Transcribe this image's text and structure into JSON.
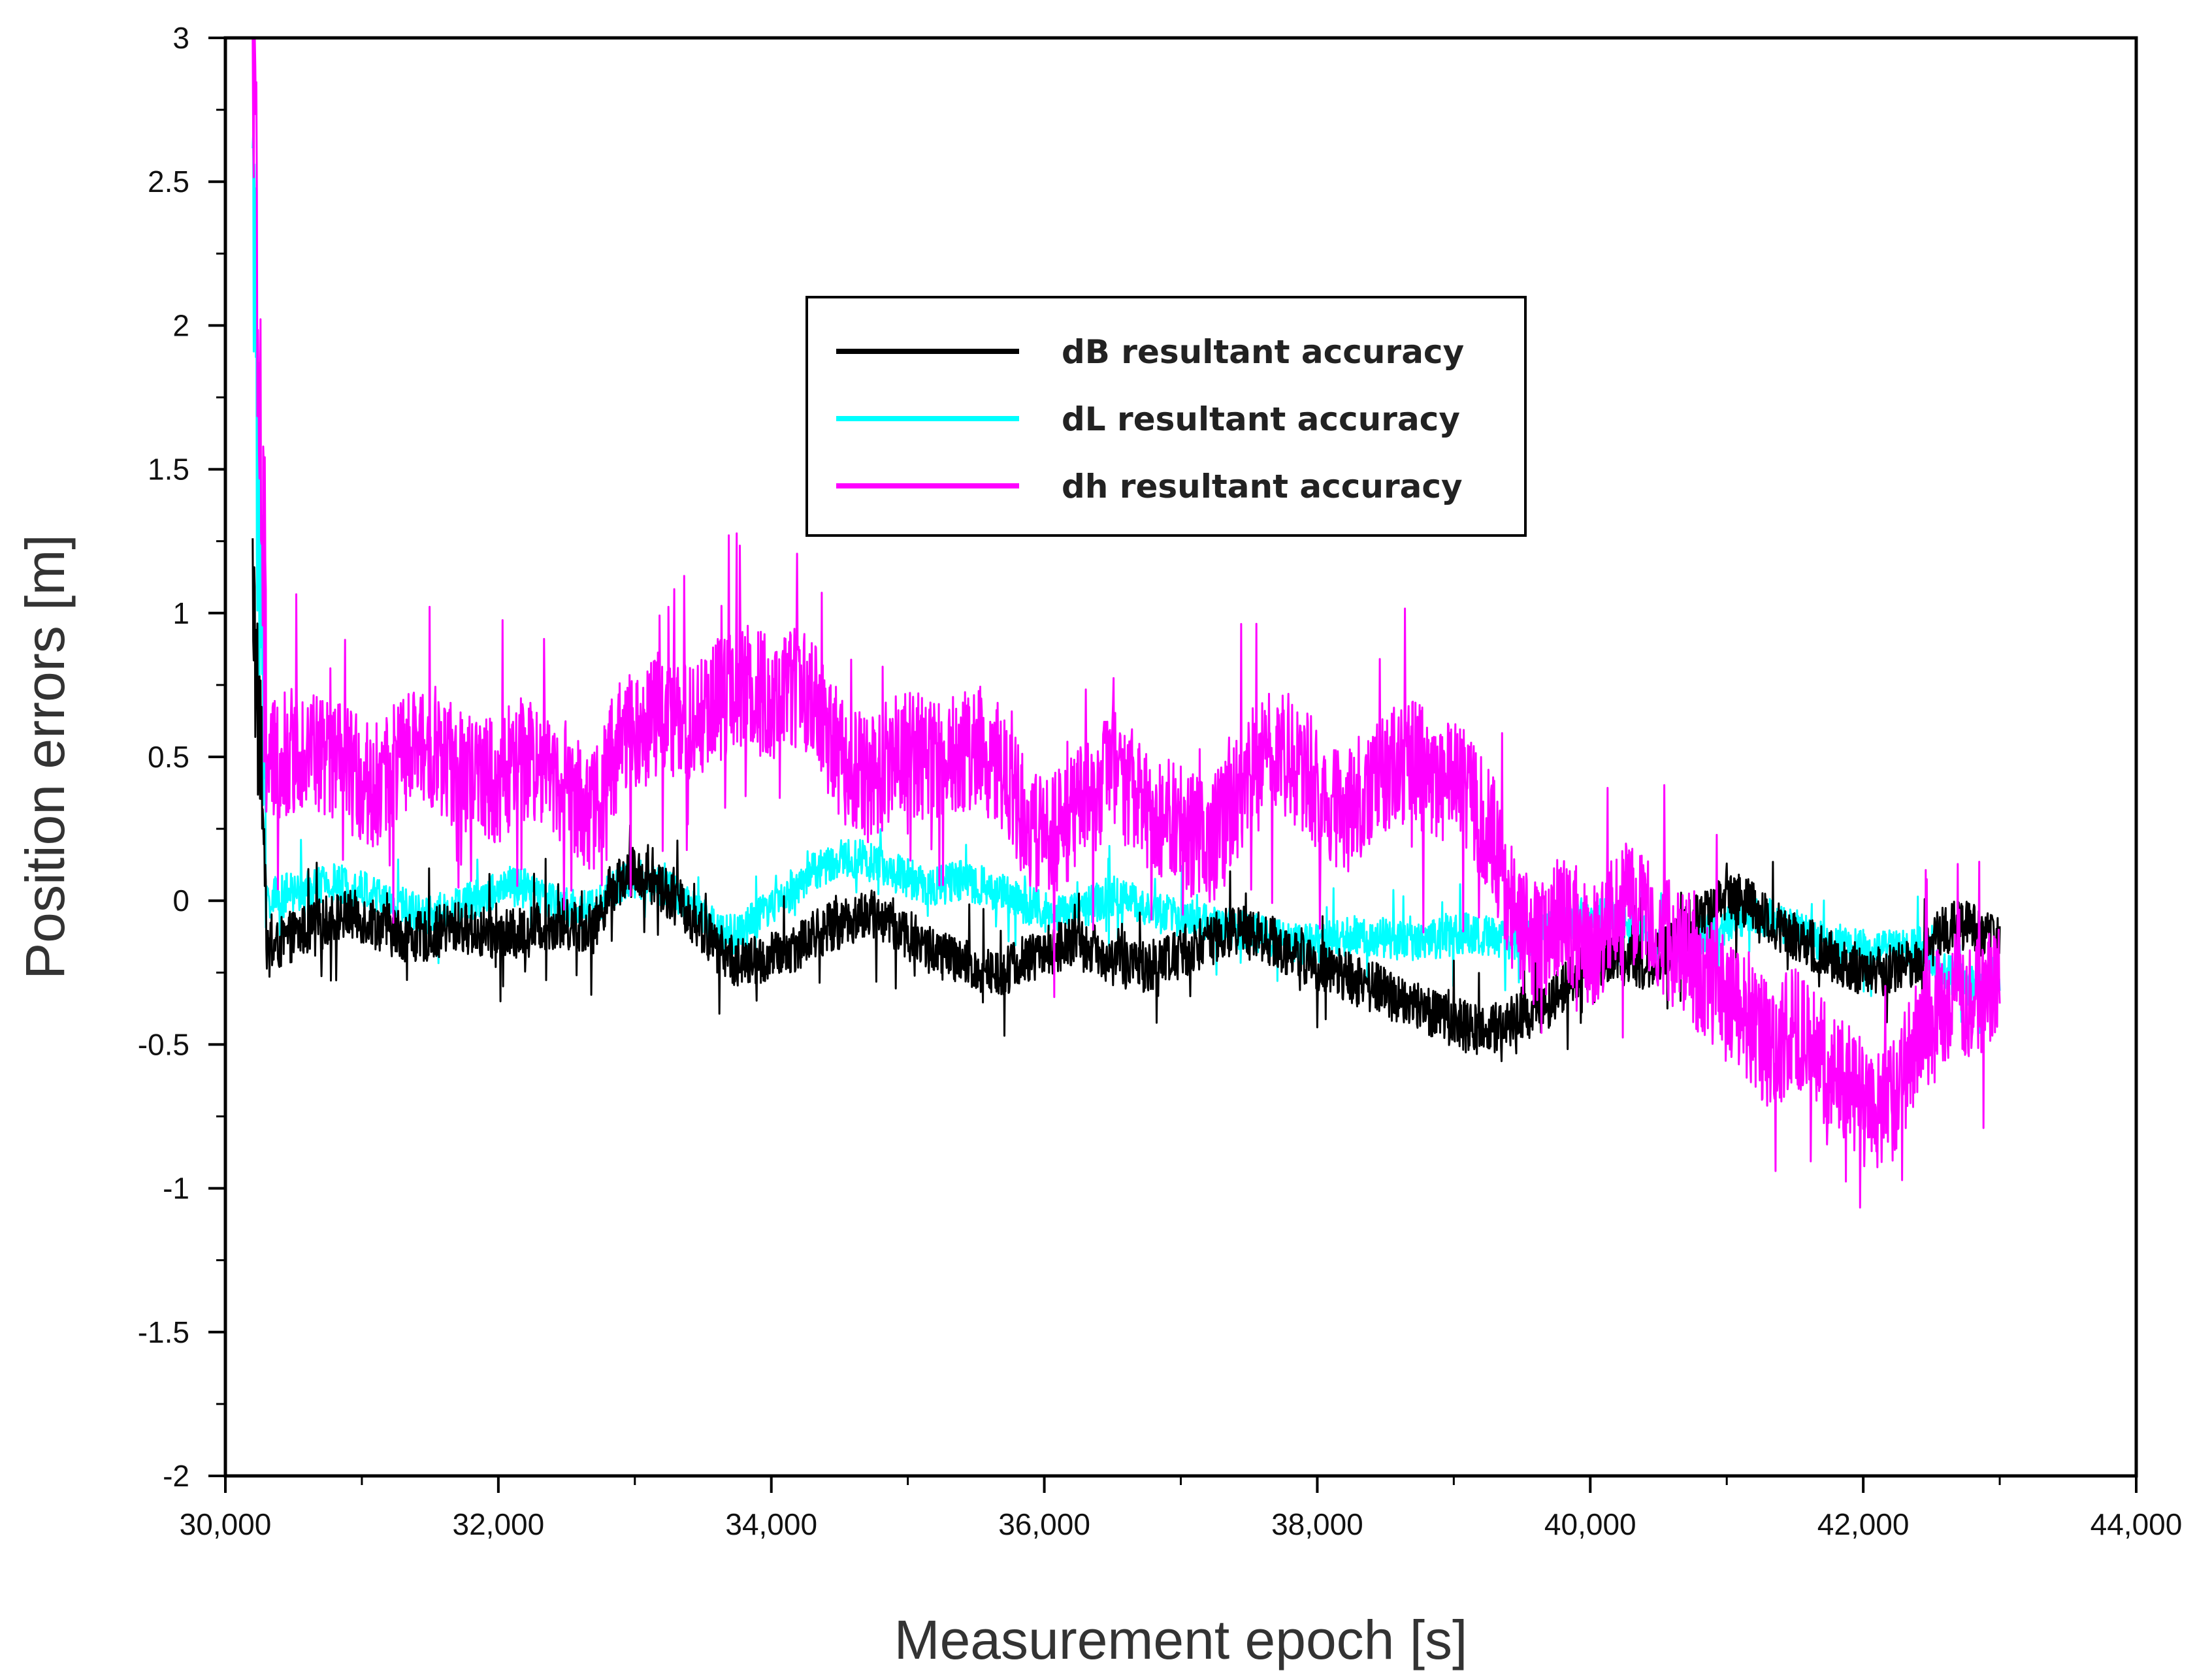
{
  "chart_data": {
    "type": "line",
    "xlabel": "Measurement epoch [s]",
    "ylabel": "Position errors [m]",
    "xlim": [
      30000,
      44000
    ],
    "ylim": [
      -2,
      3
    ],
    "x_ticks": [
      30000,
      32000,
      34000,
      36000,
      38000,
      40000,
      42000,
      44000
    ],
    "x_tick_labels": [
      "30,000",
      "32,000",
      "34,000",
      "36,000",
      "38,000",
      "40,000",
      "42,000",
      "44,000"
    ],
    "y_ticks": [
      -2,
      -1.5,
      -1,
      -0.5,
      0,
      0.5,
      1,
      1.5,
      2,
      2.5,
      3
    ],
    "y_tick_labels": [
      "-2",
      "-1.5",
      "-1",
      "-0.5",
      "0",
      "0.5",
      "1",
      "1.5",
      "2",
      "2.5",
      "3"
    ],
    "grid": false,
    "legend_position": "top-center",
    "x_sample_step": 100,
    "series": [
      {
        "name": "dB resultant accuracy",
        "color": "#000000",
        "x_start": 30200,
        "x_end": 43000,
        "values": [
          0.95,
          -0.2,
          -0.15,
          -0.12,
          -0.1,
          -0.08,
          -0.06,
          -0.05,
          -0.06,
          -0.08,
          -0.1,
          -0.12,
          -0.13,
          -0.12,
          -0.1,
          -0.09,
          -0.1,
          -0.11,
          -0.12,
          -0.12,
          -0.11,
          -0.09,
          -0.08,
          -0.08,
          -0.09,
          -0.1,
          0.02,
          0.08,
          0.1,
          0.08,
          0.05,
          0.0,
          -0.05,
          -0.1,
          -0.16,
          -0.2,
          -0.22,
          -0.21,
          -0.2,
          -0.18,
          -0.15,
          -0.12,
          -0.1,
          -0.08,
          -0.06,
          -0.05,
          -0.06,
          -0.08,
          -0.12,
          -0.15,
          -0.18,
          -0.2,
          -0.22,
          -0.24,
          -0.25,
          -0.24,
          -0.22,
          -0.2,
          -0.18,
          -0.16,
          -0.15,
          -0.16,
          -0.18,
          -0.2,
          -0.22,
          -0.23,
          -0.22,
          -0.2,
          -0.18,
          -0.16,
          -0.14,
          -0.12,
          -0.11,
          -0.1,
          -0.12,
          -0.15,
          -0.18,
          -0.2,
          -0.22,
          -0.24,
          -0.26,
          -0.28,
          -0.3,
          -0.32,
          -0.34,
          -0.36,
          -0.38,
          -0.4,
          -0.42,
          -0.44,
          -0.45,
          -0.44,
          -0.42,
          -0.4,
          -0.38,
          -0.36,
          -0.3,
          -0.25,
          -0.22,
          -0.2,
          -0.18,
          -0.2,
          -0.22,
          -0.2,
          -0.15,
          -0.1,
          -0.05,
          0.0,
          0.02,
          0.0,
          -0.02,
          -0.05,
          -0.1,
          -0.12,
          -0.15,
          -0.18,
          -0.2,
          -0.22,
          -0.24,
          -0.25,
          -0.24,
          -0.22,
          -0.2,
          -0.15,
          -0.1,
          -0.08,
          -0.1,
          -0.12,
          -0.15,
          -0.2,
          -0.25,
          -0.3,
          -0.28,
          -0.25,
          -0.2,
          -0.15,
          -0.1,
          -0.05,
          0.0,
          0.05,
          0.08,
          0.1,
          0.08,
          0.05,
          0.04,
          0.05,
          0.06,
          0.07,
          0.05,
          0.04,
          0.05,
          0.06,
          0.05,
          0.04,
          0.03
        ],
        "noise": 0.09
      },
      {
        "name": "dL resultant accuracy",
        "color": "#00ffff",
        "x_start": 30200,
        "x_end": 43000,
        "values": [
          2.1,
          0.0,
          0.02,
          0.03,
          0.04,
          0.05,
          0.06,
          0.05,
          0.04,
          0.02,
          0.0,
          -0.02,
          -0.04,
          -0.05,
          -0.04,
          -0.02,
          0.0,
          0.02,
          0.04,
          0.05,
          0.04,
          0.02,
          0.0,
          -0.02,
          -0.03,
          -0.02,
          0.02,
          0.06,
          0.08,
          0.07,
          0.05,
          0.02,
          -0.02,
          -0.06,
          -0.1,
          -0.12,
          -0.1,
          -0.06,
          -0.02,
          0.02,
          0.06,
          0.1,
          0.12,
          0.14,
          0.15,
          0.14,
          0.12,
          0.1,
          0.08,
          0.06,
          0.05,
          0.06,
          0.07,
          0.06,
          0.04,
          0.02,
          0.0,
          -0.02,
          -0.04,
          -0.05,
          -0.04,
          -0.02,
          0.0,
          0.02,
          0.01,
          -0.02,
          -0.04,
          -0.05,
          -0.06,
          -0.07,
          -0.08,
          -0.09,
          -0.1,
          -0.11,
          -0.12,
          -0.13,
          -0.14,
          -0.15,
          -0.15,
          -0.14,
          -0.13,
          -0.12,
          -0.12,
          -0.13,
          -0.14,
          -0.15,
          -0.14,
          -0.13,
          -0.12,
          -0.11,
          -0.12,
          -0.13,
          -0.14,
          -0.13,
          -0.12,
          -0.1,
          -0.08,
          -0.06,
          -0.05,
          -0.06,
          -0.08,
          -0.1,
          -0.12,
          -0.14,
          -0.15,
          -0.14,
          -0.12,
          -0.1,
          -0.08,
          -0.06,
          -0.05,
          -0.06,
          -0.08,
          -0.1,
          -0.12,
          -0.14,
          -0.15,
          -0.16,
          -0.17,
          -0.18,
          -0.17,
          -0.16,
          -0.15,
          -0.2,
          -0.25,
          -0.28,
          -0.3,
          -0.28,
          -0.25,
          -0.2,
          -0.18,
          -0.2,
          -0.22,
          -0.24,
          -0.22,
          -0.2,
          -0.18,
          -0.16,
          -0.15,
          -0.14,
          -0.16,
          -0.18,
          -0.2,
          -0.22,
          -0.2,
          -0.18,
          -0.2,
          -0.22,
          -0.25,
          -0.22,
          -0.2,
          -0.22
        ],
        "noise": 0.07
      },
      {
        "name": "dh resultant accuracy",
        "color": "#ff00ff",
        "x_start": 30200,
        "x_end": 43000,
        "values": [
          2.7,
          0.45,
          0.5,
          0.52,
          0.55,
          0.5,
          0.48,
          0.45,
          0.42,
          0.4,
          0.45,
          0.5,
          0.52,
          0.55,
          0.5,
          0.45,
          0.42,
          0.4,
          0.42,
          0.45,
          0.48,
          0.5,
          0.45,
          0.4,
          0.35,
          0.3,
          0.45,
          0.55,
          0.6,
          0.62,
          0.65,
          0.62,
          0.6,
          0.65,
          0.7,
          0.72,
          0.75,
          0.72,
          0.7,
          0.72,
          0.75,
          0.7,
          0.6,
          0.5,
          0.45,
          0.42,
          0.45,
          0.5,
          0.52,
          0.5,
          0.48,
          0.5,
          0.52,
          0.55,
          0.5,
          0.45,
          0.35,
          0.25,
          0.2,
          0.25,
          0.3,
          0.35,
          0.4,
          0.45,
          0.4,
          0.35,
          0.3,
          0.28,
          0.25,
          0.22,
          0.2,
          0.25,
          0.35,
          0.45,
          0.5,
          0.52,
          0.5,
          0.45,
          0.4,
          0.35,
          0.3,
          0.35,
          0.4,
          0.45,
          0.5,
          0.48,
          0.45,
          0.42,
          0.4,
          0.38,
          0.3,
          0.2,
          0.0,
          -0.1,
          -0.15,
          -0.1,
          -0.05,
          -0.1,
          -0.15,
          -0.1,
          -0.05,
          0.0,
          -0.05,
          -0.1,
          -0.15,
          -0.2,
          -0.25,
          -0.3,
          -0.35,
          -0.4,
          -0.45,
          -0.5,
          -0.48,
          -0.45,
          -0.5,
          -0.55,
          -0.6,
          -0.65,
          -0.7,
          -0.75,
          -0.7,
          -0.6,
          -0.5,
          -0.4,
          -0.35,
          -0.3,
          -0.35,
          -0.3,
          -0.25,
          -0.2,
          -0.25,
          -0.3,
          -0.35,
          -0.4,
          -0.45,
          -0.5,
          -0.55,
          -0.5,
          -0.45,
          -0.5,
          -0.45,
          -0.4,
          -0.45,
          -0.5,
          -0.45,
          -0.4,
          -0.45,
          -0.5,
          -0.55,
          -0.5,
          -0.45,
          -0.5
        ],
        "noise": 0.22
      }
    ]
  }
}
